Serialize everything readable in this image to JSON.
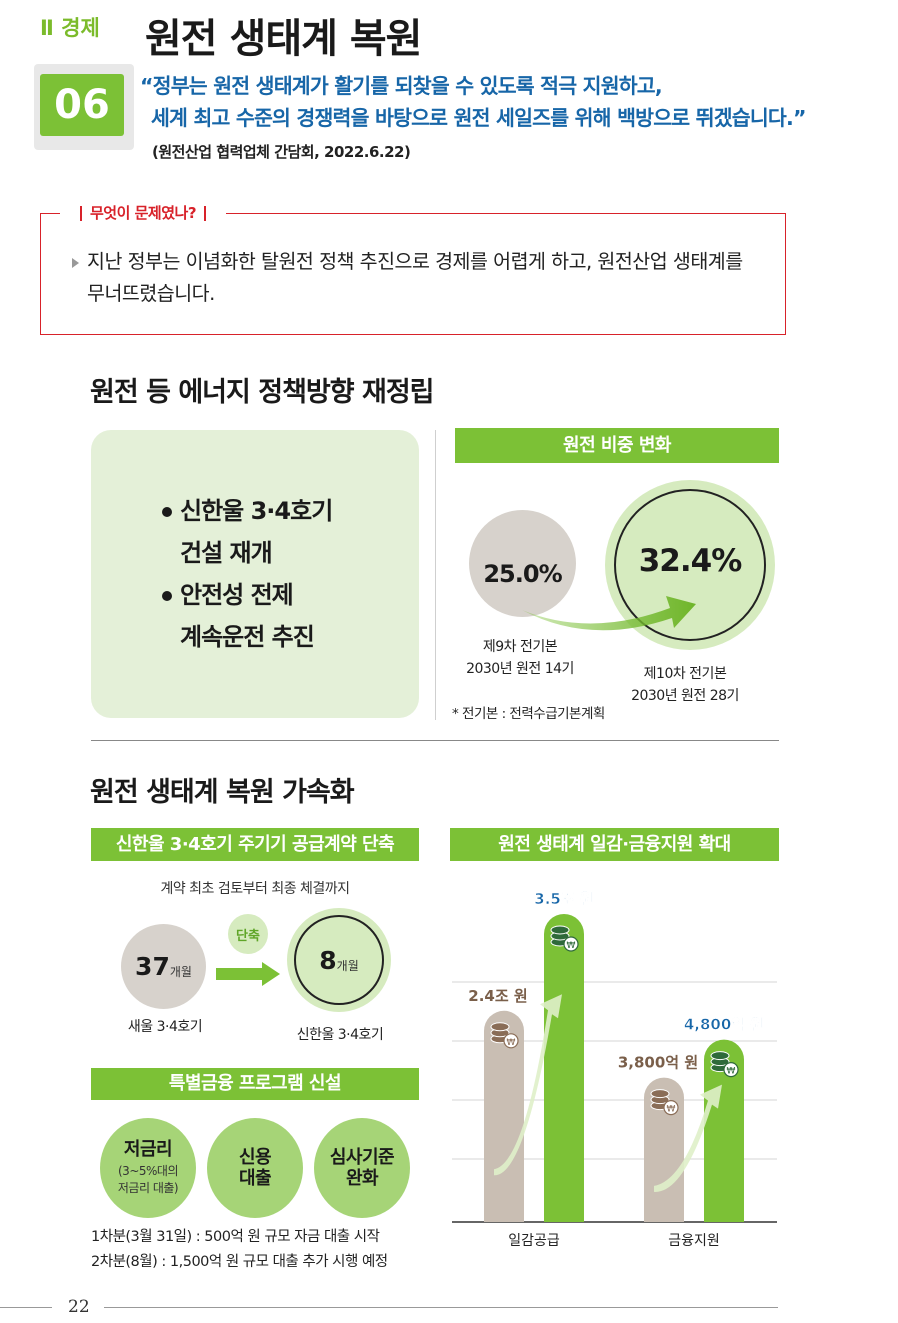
{
  "header": {
    "section": "Ⅱ 경제",
    "number": "06",
    "title": "원전 생태계 복원",
    "quote_line1": "“정부는 원전 생태계가 활기를 되찾을 수 있도록 적극 지원하고,",
    "quote_line2": "세계 최고 수준의 경쟁력을 바탕으로 원전 세일즈를 위해 백방으로 뛰겠습니다.”",
    "source": "(원전산업 협력업체 간담회, 2022.6.22)"
  },
  "problem": {
    "label": "무엇이 문제였나?",
    "text_line1": "지난 정부는 이념화한 탈원전 정책 추진으로 경제를 어렵게 하고, 원전산업 생태계를",
    "text_line2": "무너뜨렸습니다."
  },
  "section1": {
    "title": "원전 등 에너지 정책방향 재정립",
    "items": [
      {
        "line1": "신한울 3·4호기",
        "line2": "건설 재개"
      },
      {
        "line1": "안전성 전제",
        "line2": "계속운전 추진"
      }
    ],
    "share": {
      "header": "원전 비중 변화",
      "before_value": "25.0%",
      "before_caption1": "제9차 전기본",
      "before_caption2": "2030년 원전 14기",
      "after_value": "32.4%",
      "after_caption1": "제10차 전기본",
      "after_caption2": "2030년 원전 28기",
      "footnote": "* 전기본 : 전력수급기본계획"
    }
  },
  "section2": {
    "title": "원전 생태계 복원 가속화",
    "contract": {
      "header": "신한울 3·4호기 주기기 공급계약 단축",
      "subtitle": "계약 최초 검토부터 최종 체결까지",
      "before_num": "37",
      "before_unit": "개월",
      "before_caption": "새울 3·4호기",
      "shorten": "단축",
      "after_num": "8",
      "after_unit": "개월",
      "after_caption": "신한울 3·4호기"
    },
    "finance": {
      "header": "특별금융 프로그램 신설",
      "items": [
        {
          "title": "저금리",
          "sub1": "(3~5%대의",
          "sub2": "저금리 대출)"
        },
        {
          "title": "신용",
          "title2": "대출"
        },
        {
          "title": "심사기준",
          "title2": "완화"
        }
      ],
      "note1": "1차분(3월 31일) : 500억 원 규모 자금 대출 시작",
      "note2": "2차분(8월) : 1,500억 원 규모 대출 추가 시행 예정"
    },
    "support": {
      "header": "원전 생태계 일감·금융지원 확대"
    }
  },
  "chart_data": {
    "type": "bar",
    "categories": [
      "일감공급",
      "금융지원"
    ],
    "series": [
      {
        "values": [
          2.4,
          0.38
        ],
        "labels": [
          "2.4조 원",
          "3,800억 원"
        ],
        "color": "#c9beb3"
      },
      {
        "values": [
          3.5,
          0.48
        ],
        "labels": [
          "3.5조 원",
          "4,800억 원"
        ],
        "color": "#7cc136"
      }
    ],
    "title": "원전 생태계 일감·금융지원 확대",
    "xlabel": "",
    "ylabel": "",
    "grid": true,
    "legend": "none"
  },
  "footer": {
    "page": "22"
  }
}
